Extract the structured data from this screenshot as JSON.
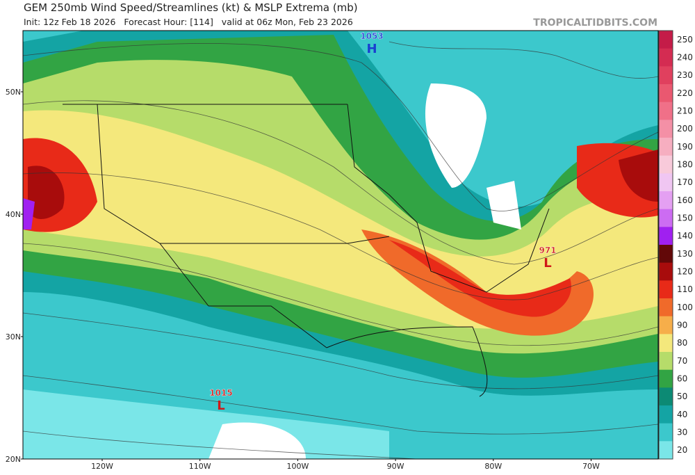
{
  "header": {
    "title": "GEM 250mb Wind Speed/Streamlines (kt) & MSLP Extrema (mb)",
    "subtitle": "Init: 12z Feb 18 2026   Forecast Hour: [114]   valid at 06z Mon, Feb 23 2026",
    "site": "TROPICALTIDBITS.COM"
  },
  "colorbar": [
    {
      "value": 250,
      "color": "#c41c48"
    },
    {
      "value": 240,
      "color": "#d42c52"
    },
    {
      "value": 230,
      "color": "#e0405e"
    },
    {
      "value": 220,
      "color": "#ea5870"
    },
    {
      "value": 210,
      "color": "#f07088"
    },
    {
      "value": 200,
      "color": "#f490a6"
    },
    {
      "value": 190,
      "color": "#f6aec0"
    },
    {
      "value": 180,
      "color": "#f8cada"
    },
    {
      "value": 170,
      "color": "#f0c6f2"
    },
    {
      "value": 160,
      "color": "#e4a0f2"
    },
    {
      "value": 150,
      "color": "#cc6cf2"
    },
    {
      "value": 140,
      "color": "#a020f0"
    },
    {
      "value": 130,
      "color": "#620808"
    },
    {
      "value": 120,
      "color": "#a80c0c"
    },
    {
      "value": 110,
      "color": "#e82a18"
    },
    {
      "value": 100,
      "color": "#f06a2a"
    },
    {
      "value": 90,
      "color": "#f6ae4a"
    },
    {
      "value": 80,
      "color": "#f4e87c"
    },
    {
      "value": 70,
      "color": "#b6dc6a"
    },
    {
      "value": 60,
      "color": "#32a444"
    },
    {
      "value": 50,
      "color": "#0c8a74"
    },
    {
      "value": 40,
      "color": "#14a4a4"
    },
    {
      "value": 30,
      "color": "#3cc8cc"
    },
    {
      "value": 20,
      "color": "#7ae6e8"
    }
  ],
  "latitudes": [
    "50N",
    "40N",
    "30N",
    "20N"
  ],
  "longitudes": [
    "120W",
    "110W",
    "100W",
    "90W",
    "80W",
    "70W"
  ],
  "pressure_centers": [
    {
      "type": "H",
      "value": "1053"
    },
    {
      "type": "L",
      "value": "971"
    },
    {
      "type": "L",
      "value": "1015"
    }
  ]
}
